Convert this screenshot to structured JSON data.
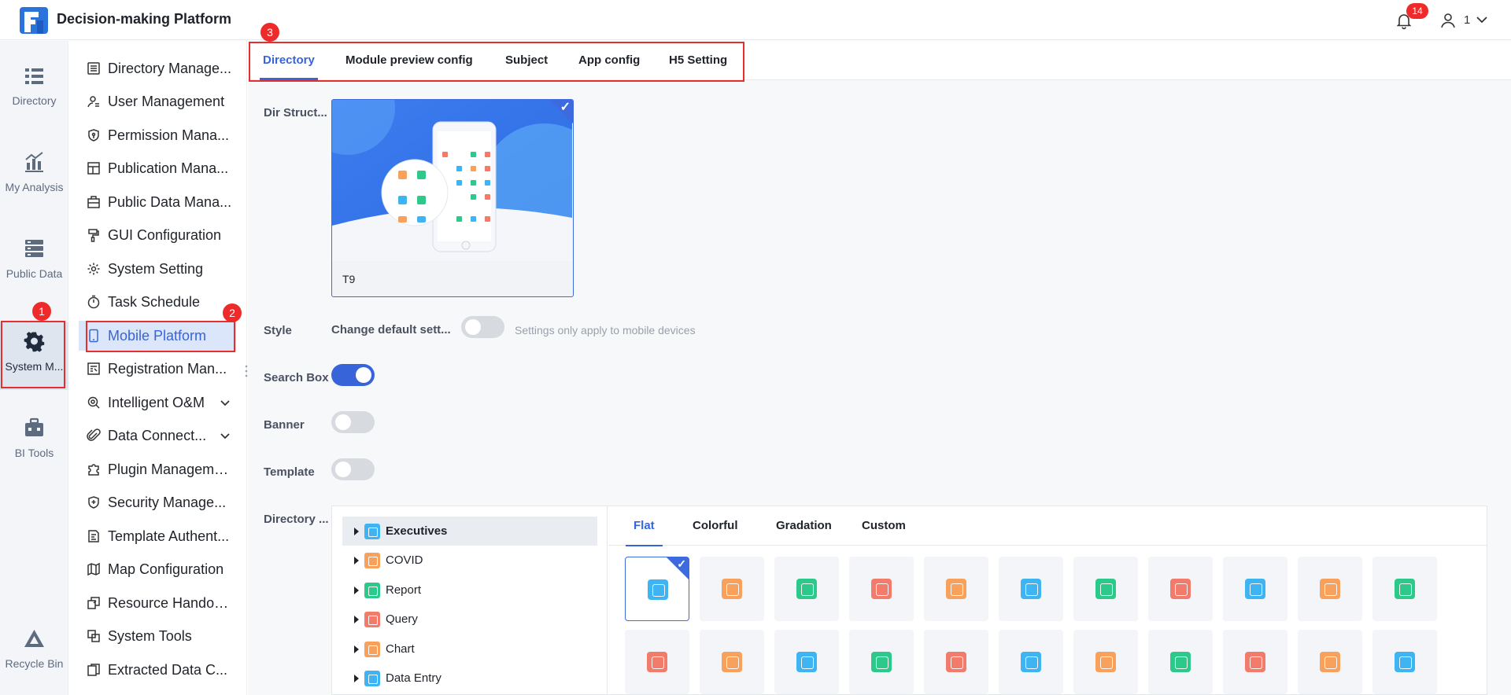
{
  "header": {
    "title": "Decision-making Platform",
    "notification_count": "14",
    "user_name": "1"
  },
  "rail": {
    "items": [
      {
        "label": "Directory",
        "icon": "directory-icon"
      },
      {
        "label": "My Analysis",
        "icon": "analysis-icon"
      },
      {
        "label": "Public Data",
        "icon": "public-data-icon"
      },
      {
        "label": "System M...",
        "icon": "system-management-icon",
        "active": true
      },
      {
        "label": "BI Tools",
        "icon": "bi-tools-icon"
      },
      {
        "label": "Recycle Bin",
        "icon": "recycle-bin-icon"
      }
    ]
  },
  "menu": {
    "items": [
      {
        "label": "Directory Manage...",
        "icon": "list-icon"
      },
      {
        "label": "User Management",
        "icon": "user-icon"
      },
      {
        "label": "Permission Mana...",
        "icon": "shield-icon"
      },
      {
        "label": "Publication Mana...",
        "icon": "layout-icon"
      },
      {
        "label": "Public Data Mana...",
        "icon": "briefcase-icon"
      },
      {
        "label": "GUI Configuration",
        "icon": "brush-icon"
      },
      {
        "label": "System Setting",
        "icon": "gear-icon"
      },
      {
        "label": "Task Schedule",
        "icon": "timer-icon"
      },
      {
        "label": "Mobile Platform",
        "icon": "mobile-icon",
        "active": true
      },
      {
        "label": "Registration Man...",
        "icon": "registration-icon"
      },
      {
        "label": "Intelligent O&M",
        "icon": "search-gear-icon",
        "expandable": true
      },
      {
        "label": "Data Connect...",
        "icon": "paperclip-icon",
        "expandable": true
      },
      {
        "label": "Plugin Management",
        "icon": "puzzle-icon"
      },
      {
        "label": "Security Manage...",
        "icon": "shield-plus-icon"
      },
      {
        "label": "Template Authent...",
        "icon": "document-edit-icon"
      },
      {
        "label": "Map Configuration",
        "icon": "map-icon"
      },
      {
        "label": "Resource Handover",
        "icon": "handover-icon"
      },
      {
        "label": "System Tools",
        "icon": "tools-icon"
      },
      {
        "label": "Extracted Data C...",
        "icon": "copy-icon"
      }
    ]
  },
  "annotations": [
    "1",
    "2",
    "3"
  ],
  "tabs": [
    "Directory",
    "Module preview config",
    "Subject",
    "App config",
    "H5 Setting"
  ],
  "active_tab": "Directory",
  "form": {
    "dir_structure_label": "Dir Struct...",
    "template_card_caption": "T9",
    "style_label": "Style",
    "change_default_label": "Change default sett...",
    "change_default_on": false,
    "style_hint": "Settings only apply to mobile devices",
    "search_box_label": "Search Box",
    "search_box_on": true,
    "banner_label": "Banner",
    "banner_on": false,
    "template_label": "Template",
    "template_on": false,
    "directory_label": "Directory ..."
  },
  "tree": {
    "items": [
      {
        "label": "Executives",
        "color": "#3fb4f2",
        "selected": true
      },
      {
        "label": "COVID",
        "color": "#f7a15c"
      },
      {
        "label": "Report",
        "color": "#2dc98a"
      },
      {
        "label": "Query",
        "color": "#f27b6b"
      },
      {
        "label": "Chart",
        "color": "#f7a15c"
      },
      {
        "label": "Data Entry",
        "color": "#3fb4f2"
      }
    ]
  },
  "style_tabs": [
    "Flat",
    "Colorful",
    "Gradation",
    "Custom"
  ],
  "active_style_tab": "Flat",
  "icon_grid": {
    "row1": [
      "#3fb4f2",
      "#f7a15c",
      "#2dc98a",
      "#f27b6b",
      "#f7a15c",
      "#3fb4f2",
      "#2dc98a",
      "#f27b6b",
      "#3fb4f2",
      "#f7a15c",
      "#2dc98a"
    ],
    "row2": [
      "#f27b6b",
      "#f7a15c",
      "#3fb4f2",
      "#2dc98a",
      "#f27b6b",
      "#3fb4f2",
      "#f7a15c",
      "#2dc98a",
      "#f27b6b",
      "#f7a15c",
      "#3fb4f2"
    ],
    "selected_index": 0
  },
  "colors": {
    "accent": "#3864d9",
    "annotation_red": "#e52e2e"
  }
}
